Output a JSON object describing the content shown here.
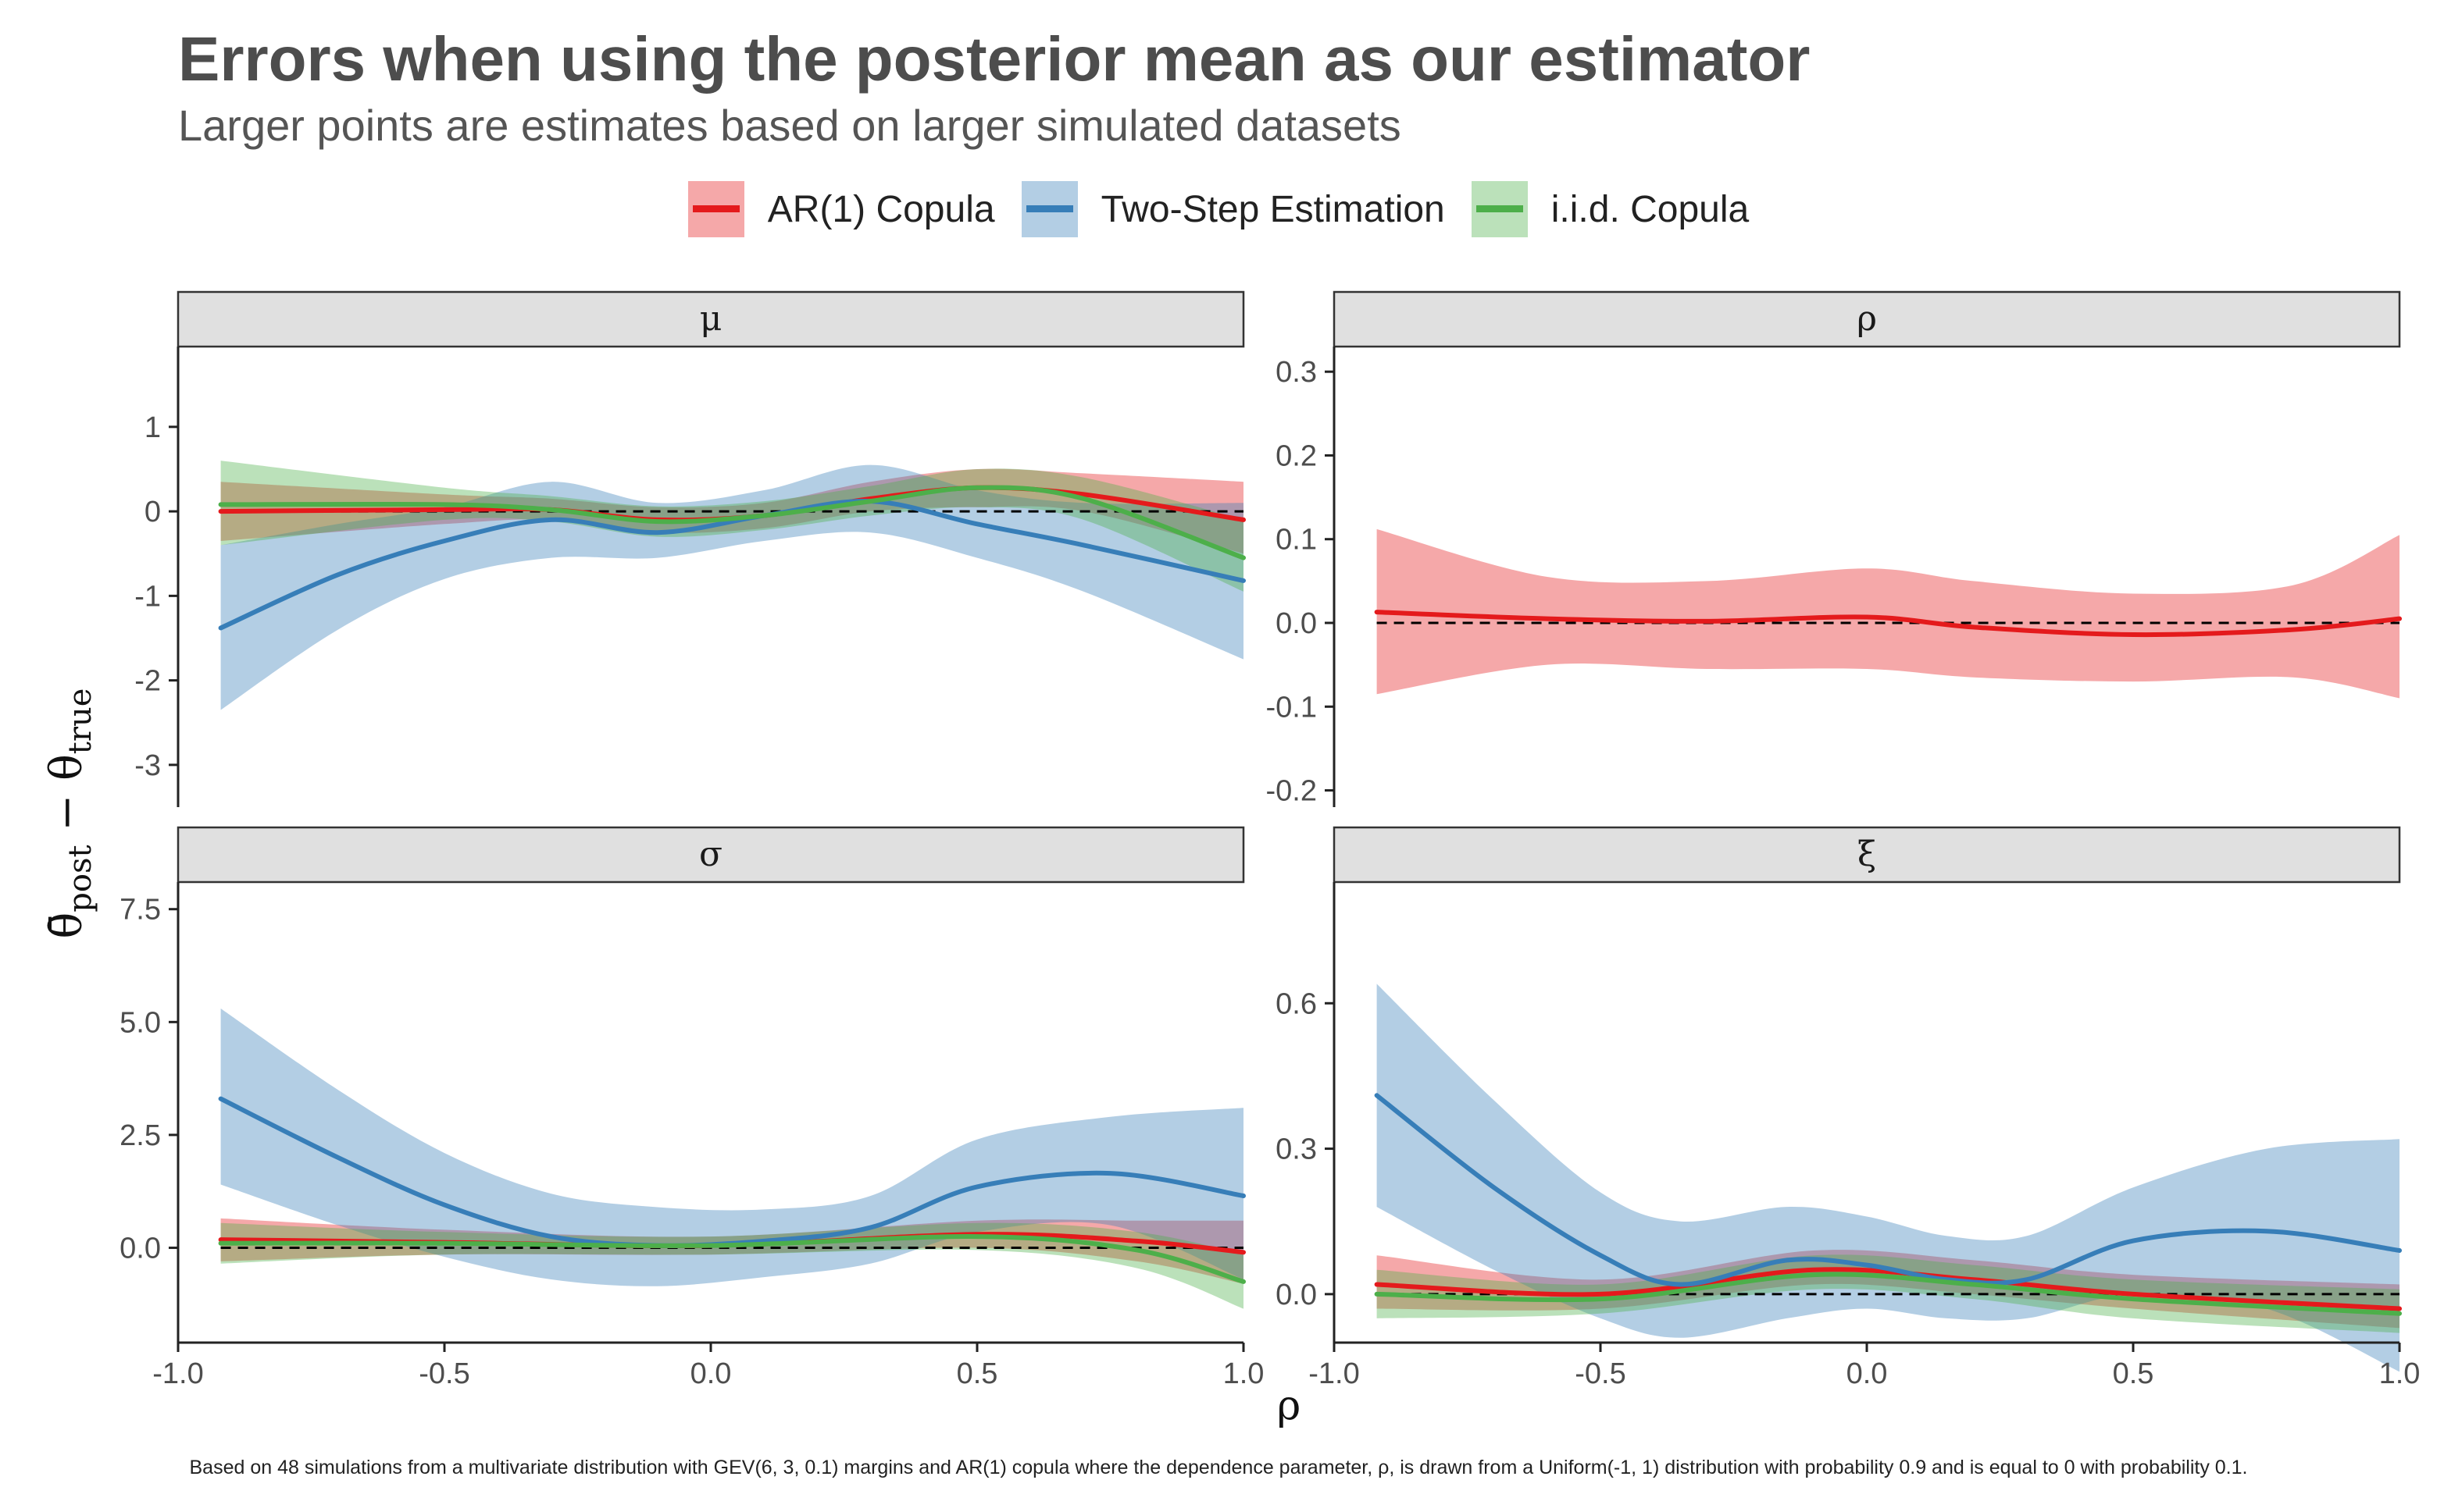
{
  "title": "Errors when using the posterior mean as our estimator",
  "subtitle": "Larger points are estimates based on larger simulated datasets",
  "caption": "Based on 48 simulations from a multivariate distribution with GEV(6, 3, 0.1) margins and AR(1) copula where the dependence parameter, ρ, is drawn from a Uniform(-1, 1) distribution with probability 0.9 and is equal to 0 with probability 0.1.",
  "legend": [
    {
      "label": "AR(1) Copula",
      "color": "#e41a1c"
    },
    {
      "label": "Two-Step Estimation",
      "color": "#377eb8"
    },
    {
      "label": "i.i.d. Copula",
      "color": "#4daf4a"
    }
  ],
  "chart_data": {
    "type": "line",
    "xlabel": "ρ",
    "ylabel": "θ̄post − θtrue",
    "xlim": [
      -1.0,
      1.0
    ],
    "xticks": [
      "-1.0",
      "-0.5",
      "0.0",
      "0.5",
      "1.0"
    ],
    "reference_line": 0,
    "panels": [
      {
        "strip": "μ",
        "ylim": [
          -3.5,
          1.95
        ],
        "yticks": [
          1,
          0,
          -1,
          -2,
          -3
        ],
        "ytick_labels": [
          "1",
          "0",
          "-1",
          "-2",
          "-3"
        ],
        "series": [
          {
            "name": "AR(1) Copula",
            "color": "#e41a1c",
            "x": [
              -0.92,
              -0.5,
              -0.3,
              -0.1,
              0.1,
              0.3,
              0.5,
              0.7,
              1.0
            ],
            "y": [
              0.0,
              0.02,
              0.02,
              -0.1,
              -0.05,
              0.15,
              0.28,
              0.2,
              -0.1
            ],
            "lo": [
              -0.35,
              -0.15,
              -0.1,
              -0.25,
              -0.2,
              0.0,
              0.05,
              0.0,
              -0.5
            ],
            "hi": [
              0.35,
              0.2,
              0.15,
              0.05,
              0.1,
              0.35,
              0.5,
              0.45,
              0.35
            ]
          },
          {
            "name": "Two-Step Estimation",
            "color": "#377eb8",
            "x": [
              -0.92,
              -0.7,
              -0.5,
              -0.3,
              -0.1,
              0.1,
              0.3,
              0.5,
              0.7,
              1.0
            ],
            "y": [
              -1.38,
              -0.75,
              -0.35,
              -0.1,
              -0.25,
              -0.05,
              0.12,
              -0.15,
              -0.4,
              -0.82
            ],
            "lo": [
              -2.35,
              -1.4,
              -0.8,
              -0.55,
              -0.55,
              -0.35,
              -0.25,
              -0.55,
              -0.95,
              -1.75
            ],
            "hi": [
              -0.4,
              -0.15,
              0.05,
              0.35,
              0.1,
              0.25,
              0.55,
              0.25,
              0.1,
              0.1
            ]
          },
          {
            "name": "i.i.d. Copula",
            "color": "#4daf4a",
            "x": [
              -0.92,
              -0.5,
              -0.3,
              -0.1,
              0.1,
              0.3,
              0.5,
              0.7,
              1.0
            ],
            "y": [
              0.08,
              0.08,
              0.02,
              -0.12,
              -0.05,
              0.12,
              0.28,
              0.15,
              -0.55
            ],
            "lo": [
              -0.4,
              -0.1,
              -0.12,
              -0.3,
              -0.22,
              -0.05,
              0.05,
              -0.1,
              -0.95
            ],
            "hi": [
              0.6,
              0.28,
              0.18,
              0.06,
              0.12,
              0.3,
              0.5,
              0.4,
              -0.1
            ]
          }
        ]
      },
      {
        "strip": "ρ",
        "ylim": [
          -0.22,
          0.33
        ],
        "yticks": [
          0.3,
          0.2,
          0.1,
          0.0,
          -0.1,
          -0.2
        ],
        "ytick_labels": [
          "0.3",
          "0.2",
          "0.1",
          "0.0",
          "-0.1",
          "-0.2"
        ],
        "series": [
          {
            "name": "AR(1) Copula",
            "color": "#e41a1c",
            "x": [
              -0.92,
              -0.6,
              -0.3,
              0.0,
              0.2,
              0.5,
              0.8,
              1.0
            ],
            "y": [
              0.013,
              0.005,
              0.002,
              0.007,
              -0.005,
              -0.014,
              -0.008,
              0.005
            ],
            "lo": [
              -0.085,
              -0.05,
              -0.055,
              -0.055,
              -0.065,
              -0.07,
              -0.065,
              -0.09
            ],
            "hi": [
              0.112,
              0.055,
              0.05,
              0.065,
              0.05,
              0.035,
              0.045,
              0.105
            ]
          }
        ]
      },
      {
        "strip": "σ",
        "ylim": [
          -2.1,
          8.1
        ],
        "yticks": [
          7.5,
          5.0,
          2.5,
          0.0
        ],
        "ytick_labels": [
          "7.5",
          "5.0",
          "2.5",
          "0.0"
        ],
        "series": [
          {
            "name": "AR(1) Copula",
            "color": "#e41a1c",
            "x": [
              -0.92,
              -0.5,
              0.0,
              0.5,
              0.8,
              1.0
            ],
            "y": [
              0.18,
              0.12,
              0.05,
              0.3,
              0.15,
              -0.1
            ],
            "lo": [
              -0.3,
              -0.15,
              -0.15,
              0.0,
              -0.3,
              -0.8
            ],
            "hi": [
              0.65,
              0.4,
              0.25,
              0.6,
              0.6,
              0.6
            ]
          },
          {
            "name": "Two-Step Estimation",
            "color": "#377eb8",
            "x": [
              -0.92,
              -0.7,
              -0.5,
              -0.3,
              -0.1,
              0.1,
              0.3,
              0.5,
              0.75,
              1.0
            ],
            "y": [
              3.3,
              2.0,
              0.95,
              0.25,
              0.05,
              0.15,
              0.45,
              1.35,
              1.65,
              1.15
            ],
            "lo": [
              1.4,
              0.5,
              -0.2,
              -0.7,
              -0.85,
              -0.65,
              -0.35,
              0.35,
              0.5,
              -0.7
            ],
            "hi": [
              5.3,
              3.5,
              2.1,
              1.2,
              0.9,
              0.85,
              1.15,
              2.4,
              2.9,
              3.1
            ]
          },
          {
            "name": "i.i.d. Copula",
            "color": "#4daf4a",
            "x": [
              -0.92,
              -0.5,
              0.0,
              0.5,
              0.8,
              1.0
            ],
            "y": [
              0.1,
              0.1,
              0.05,
              0.25,
              -0.05,
              -0.75
            ],
            "lo": [
              -0.35,
              -0.15,
              -0.15,
              -0.05,
              -0.45,
              -1.35
            ],
            "hi": [
              0.55,
              0.35,
              0.25,
              0.55,
              0.35,
              -0.15
            ]
          }
        ]
      },
      {
        "strip": "ξ",
        "ylim": [
          -0.1,
          0.85
        ],
        "yticks": [
          0.6,
          0.3,
          0.0
        ],
        "ytick_labels": [
          "0.6",
          "0.3",
          "0.0"
        ],
        "series": [
          {
            "name": "AR(1) Copula",
            "color": "#e41a1c",
            "x": [
              -0.92,
              -0.5,
              -0.1,
              0.2,
              0.5,
              1.0
            ],
            "y": [
              0.02,
              0.0,
              0.05,
              0.03,
              0.0,
              -0.03
            ],
            "lo": [
              -0.03,
              -0.03,
              0.02,
              0.0,
              -0.03,
              -0.07
            ],
            "hi": [
              0.08,
              0.03,
              0.09,
              0.07,
              0.04,
              0.02
            ]
          },
          {
            "name": "Two-Step Estimation",
            "color": "#377eb8",
            "x": [
              -0.92,
              -0.7,
              -0.5,
              -0.35,
              -0.15,
              0.0,
              0.15,
              0.3,
              0.5,
              0.75,
              1.0
            ],
            "y": [
              0.41,
              0.22,
              0.08,
              0.02,
              0.07,
              0.06,
              0.03,
              0.03,
              0.11,
              0.13,
              0.09
            ],
            "lo": [
              0.18,
              0.05,
              -0.05,
              -0.09,
              -0.05,
              -0.03,
              -0.05,
              -0.05,
              0.0,
              -0.03,
              -0.16
            ],
            "hi": [
              0.64,
              0.4,
              0.21,
              0.15,
              0.18,
              0.16,
              0.12,
              0.12,
              0.22,
              0.3,
              0.32
            ]
          },
          {
            "name": "i.i.d. Copula",
            "color": "#4daf4a",
            "x": [
              -0.92,
              -0.5,
              -0.1,
              0.2,
              0.5,
              1.0
            ],
            "y": [
              0.0,
              -0.01,
              0.04,
              0.02,
              -0.01,
              -0.04
            ],
            "lo": [
              -0.05,
              -0.04,
              0.01,
              -0.01,
              -0.05,
              -0.08
            ],
            "hi": [
              0.05,
              0.02,
              0.08,
              0.06,
              0.03,
              0.01
            ]
          }
        ]
      }
    ]
  }
}
